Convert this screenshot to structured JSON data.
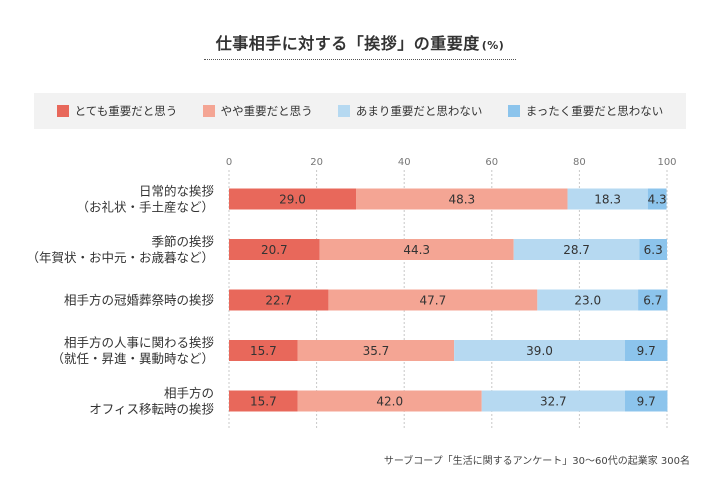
{
  "header": {
    "title": "仕事相手に対する「挨拶」の重要度",
    "unit": "(%)"
  },
  "source": "サーブコープ「生活に関するアンケート」30〜60代の起業家 300名",
  "chart_data": {
    "type": "bar",
    "orientation": "horizontal",
    "stacked": true,
    "xlim": [
      0,
      100
    ],
    "ticks": [
      0,
      20,
      40,
      60,
      80,
      100
    ],
    "grid": true,
    "legend_position": "top",
    "categories": [
      [
        "日常的な挨拶",
        "（お礼状・手土産など）"
      ],
      [
        "季節の挨拶",
        "（年賀状・お中元・お歳暮など）"
      ],
      [
        "相手方の冠婚葬祭時の挨拶"
      ],
      [
        "相手方の人事に関わる挨拶",
        "（就任・昇進・異動時など）"
      ],
      [
        "相手方の",
        "オフィス移転時の挨拶"
      ]
    ],
    "series": [
      {
        "name": "とても重要だと思う",
        "color": "#e8685b",
        "values": [
          29.0,
          20.7,
          22.7,
          15.7,
          15.7
        ]
      },
      {
        "name": "やや重要だと思う",
        "color": "#f4a594",
        "values": [
          48.3,
          44.3,
          47.7,
          35.7,
          42.0
        ]
      },
      {
        "name": "あまり重要だと思わない",
        "color": "#b6d9f1",
        "values": [
          18.3,
          28.7,
          23.0,
          39.0,
          32.7
        ]
      },
      {
        "name": "まったく重要だと思わない",
        "color": "#8cc4ec",
        "values": [
          4.3,
          6.3,
          6.7,
          9.7,
          9.7
        ]
      }
    ]
  }
}
